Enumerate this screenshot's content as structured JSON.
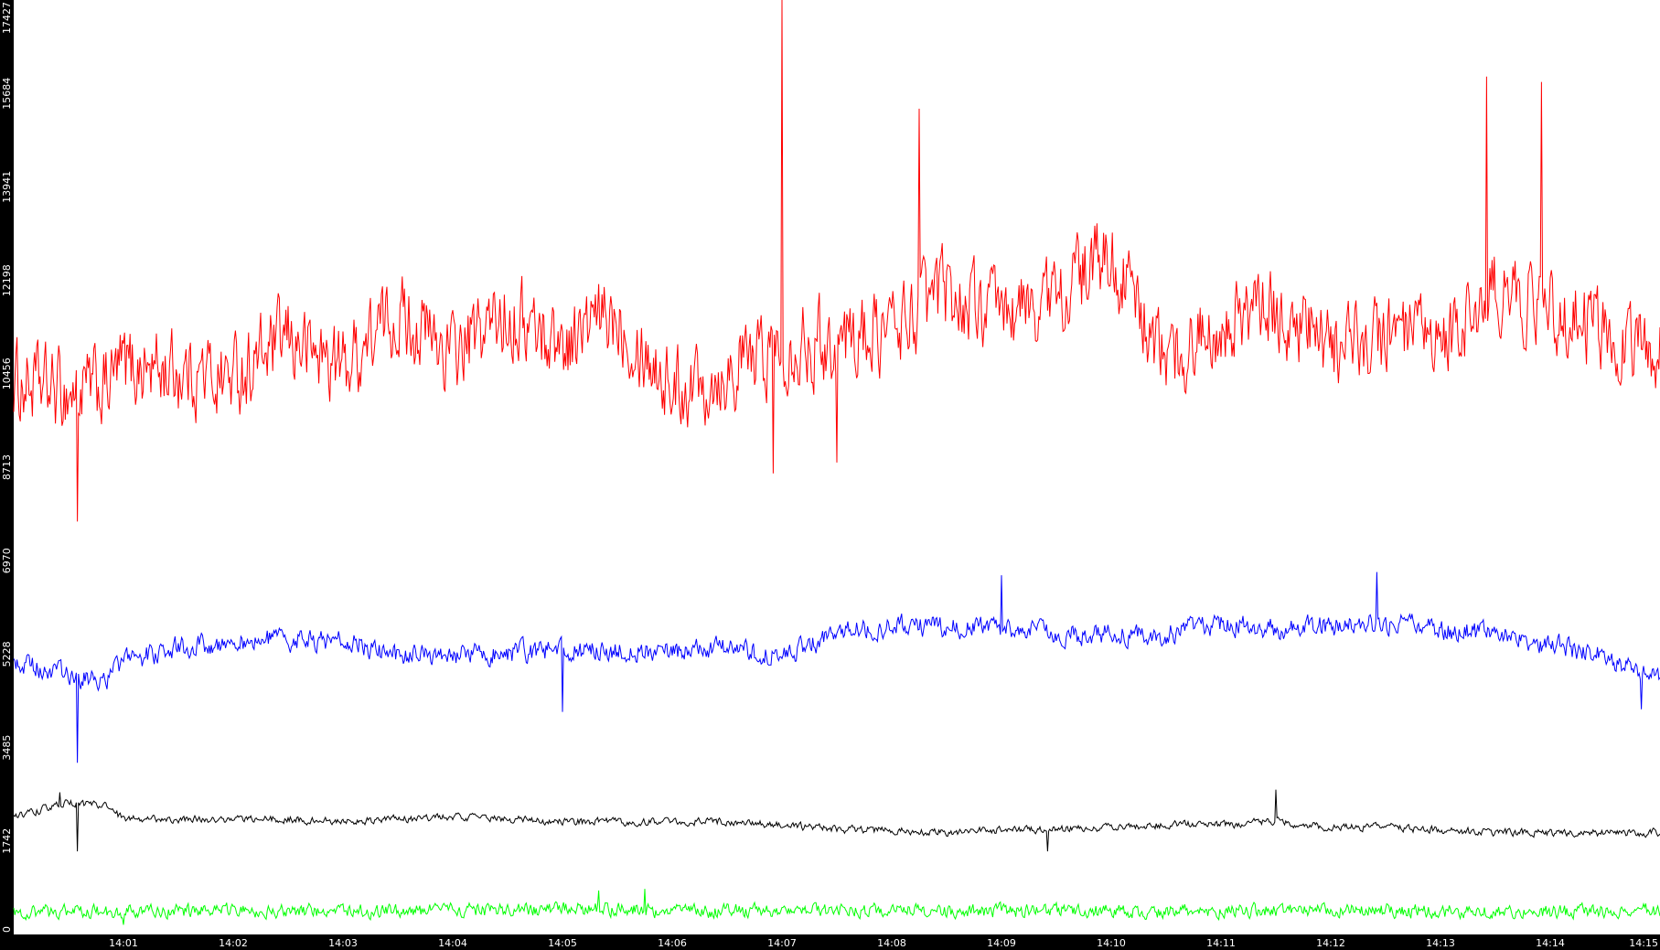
{
  "chart_data": {
    "type": "line",
    "title": "",
    "xlabel": "",
    "ylabel": "",
    "ylim": [
      0,
      17427
    ],
    "xlim_minutes": [
      14.0,
      14.998
    ],
    "y_ticks": [
      0,
      1742,
      3485,
      5228,
      6970,
      8713,
      10456,
      12198,
      13941,
      15684,
      17427
    ],
    "y_tick_labels": [
      "0",
      "1742",
      "3485",
      "5228",
      "6970",
      "8713",
      "10456",
      "12198",
      "13941",
      "15684",
      "17427"
    ],
    "x_ticks": [
      "14:01",
      "14:02",
      "14:03",
      "14:04",
      "14:05",
      "14:06",
      "14:07",
      "14:08",
      "14:09",
      "14:10",
      "14:11",
      "14:12",
      "14:13",
      "14:14",
      "14:15"
    ],
    "x_tick_labels": [
      "14:01",
      "14:02",
      "14:03",
      "14:04",
      "14:05",
      "14:06",
      "14:07",
      "14:08",
      "14:09",
      "14:10",
      "14:11",
      "14:12",
      "14:13",
      "14:14",
      "14:15"
    ],
    "grid": false,
    "background": "#ffffff",
    "frame_color": "#000000",
    "series": [
      {
        "color": "#ff0000",
        "x": [
          "14:00:00",
          "14:00:30",
          "14:00:50",
          "14:01:00",
          "14:01:30",
          "14:02:00",
          "14:02:30",
          "14:03:00",
          "14:03:30",
          "14:04:00",
          "14:04:30",
          "14:05:00",
          "14:05:30",
          "14:06:00",
          "14:06:30",
          "14:07:00",
          "14:07:30",
          "14:08:00",
          "14:08:30",
          "14:09:00",
          "14:09:30",
          "14:10:00",
          "14:10:30",
          "14:11:00",
          "14:11:30",
          "14:12:00",
          "14:12:30",
          "14:13:00",
          "14:13:30",
          "14:14:00",
          "14:14:30",
          "14:15:00"
        ],
        "values": [
          10300,
          10100,
          10200,
          10600,
          10500,
          10400,
          11100,
          10600,
          11600,
          10800,
          11600,
          11000,
          11600,
          10200,
          10500,
          11000,
          11100,
          11300,
          12000,
          11500,
          11900,
          12700,
          10600,
          11500,
          11600,
          10900,
          11200,
          10900,
          12000,
          11700,
          11200,
          10900
        ],
        "peaks": [
          {
            "x": "14:07:00",
            "value": 17427
          },
          {
            "x": "14:13:25",
            "value": 16000
          },
          {
            "x": "14:13:55",
            "value": 15900
          },
          {
            "x": "14:08:15",
            "value": 15400
          }
        ],
        "troughs": [
          {
            "x": "14:00:35",
            "value": 7700
          },
          {
            "x": "14:06:55",
            "value": 8600
          },
          {
            "x": "14:07:30",
            "value": 8800
          }
        ]
      },
      {
        "color": "#0000ff",
        "x": [
          "14:00:00",
          "14:00:30",
          "14:00:50",
          "14:01:00",
          "14:01:30",
          "14:02:00",
          "14:02:30",
          "14:03:00",
          "14:03:30",
          "14:04:00",
          "14:04:30",
          "14:05:00",
          "14:05:30",
          "14:06:00",
          "14:06:30",
          "14:07:00",
          "14:07:30",
          "14:08:00",
          "14:08:30",
          "14:09:00",
          "14:09:30",
          "14:10:00",
          "14:10:30",
          "14:11:00",
          "14:11:30",
          "14:12:00",
          "14:12:30",
          "14:13:00",
          "14:13:30",
          "14:14:00",
          "14:14:30",
          "14:15:00"
        ],
        "values": [
          5100,
          4800,
          4750,
          5100,
          5350,
          5450,
          5500,
          5500,
          5200,
          5200,
          5250,
          5300,
          5300,
          5250,
          5350,
          5150,
          5650,
          5750,
          5750,
          5700,
          5600,
          5600,
          5600,
          5800,
          5700,
          5750,
          5800,
          5700,
          5600,
          5400,
          5200,
          4800
        ],
        "peaks": [
          {
            "x": "14:12:25",
            "value": 6760
          },
          {
            "x": "14:09:00",
            "value": 6700
          }
        ],
        "troughs": [
          {
            "x": "14:00:35",
            "value": 3200
          },
          {
            "x": "14:05:00",
            "value": 4150
          },
          {
            "x": "14:14:50",
            "value": 4200
          }
        ]
      },
      {
        "color": "#000000",
        "x": [
          "14:00:00",
          "14:00:30",
          "14:00:50",
          "14:01:00",
          "14:01:30",
          "14:02:00",
          "14:02:30",
          "14:03:00",
          "14:03:30",
          "14:04:00",
          "14:04:30",
          "14:05:00",
          "14:05:30",
          "14:06:00",
          "14:06:30",
          "14:07:00",
          "14:07:30",
          "14:08:00",
          "14:08:30",
          "14:09:00",
          "14:09:30",
          "14:10:00",
          "14:10:30",
          "14:11:00",
          "14:11:30",
          "14:12:00",
          "14:12:30",
          "14:13:00",
          "14:13:30",
          "14:14:00",
          "14:14:30",
          "14:15:00"
        ],
        "values": [
          2200,
          2450,
          2400,
          2150,
          2150,
          2150,
          2150,
          2100,
          2150,
          2200,
          2150,
          2100,
          2100,
          2100,
          2100,
          2050,
          1950,
          1950,
          1900,
          1950,
          1950,
          2000,
          2050,
          2050,
          2100,
          2000,
          2000,
          1950,
          1900,
          1900,
          1900,
          1900
        ],
        "peaks": [
          {
            "x": "14:11:30",
            "value": 2700
          },
          {
            "x": "14:00:25",
            "value": 2650
          }
        ],
        "troughs": [
          {
            "x": "14:00:35",
            "value": 1550
          },
          {
            "x": "14:09:25",
            "value": 1550
          }
        ]
      },
      {
        "color": "#00ff00",
        "x": [
          "14:00:00",
          "14:00:30",
          "14:00:50",
          "14:01:00",
          "14:01:30",
          "14:02:00",
          "14:02:30",
          "14:03:00",
          "14:03:30",
          "14:04:00",
          "14:04:30",
          "14:05:00",
          "14:05:30",
          "14:06:00",
          "14:06:30",
          "14:07:00",
          "14:07:30",
          "14:08:00",
          "14:08:30",
          "14:09:00",
          "14:09:30",
          "14:10:00",
          "14:10:30",
          "14:11:00",
          "14:11:30",
          "14:12:00",
          "14:12:30",
          "14:13:00",
          "14:13:30",
          "14:14:00",
          "14:14:30",
          "14:15:00"
        ],
        "values": [
          400,
          420,
          420,
          430,
          430,
          450,
          450,
          440,
          440,
          450,
          460,
          470,
          480,
          440,
          440,
          430,
          430,
          440,
          440,
          440,
          440,
          430,
          430,
          450,
          450,
          450,
          450,
          430,
          440,
          420,
          420,
          450
        ],
        "peaks": [
          {
            "x": "14:05:45",
            "value": 850
          },
          {
            "x": "14:05:20",
            "value": 820
          }
        ],
        "troughs": [
          {
            "x": "14:01:00",
            "value": 180
          }
        ]
      }
    ]
  }
}
